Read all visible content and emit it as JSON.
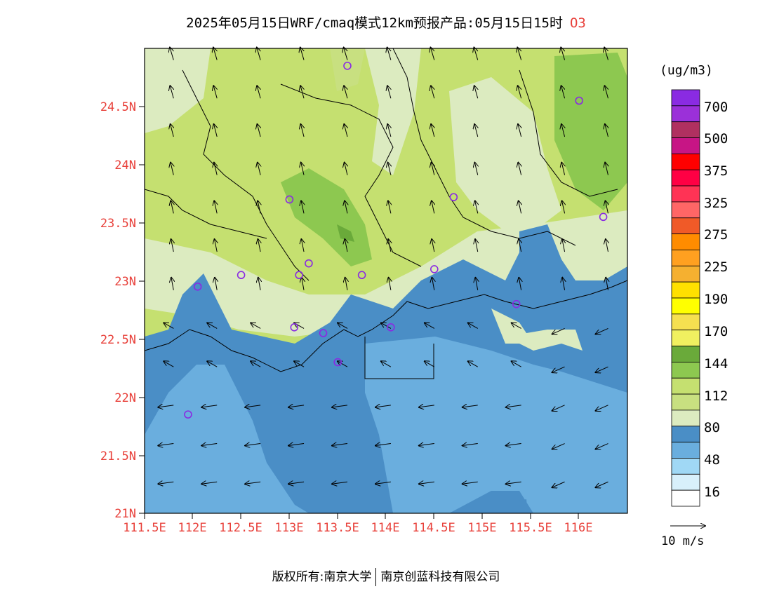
{
  "title": {
    "main": "2025年05月15日WRF/cmaq模式12km预报产品:05月15日15时",
    "pollutant": "O3"
  },
  "axes": {
    "x_ticks": [
      "111.5E",
      "112E",
      "112.5E",
      "113E",
      "113.5E",
      "114E",
      "114.5E",
      "115E",
      "115.5E",
      "116E"
    ],
    "y_ticks": [
      "21N",
      "21.5N",
      "22N",
      "22.5N",
      "23N",
      "23.5N",
      "24N",
      "24.5N"
    ]
  },
  "legend": {
    "unit": "(ug/m3)",
    "labels": [
      "700",
      "500",
      "375",
      "325",
      "275",
      "225",
      "190",
      "170",
      "144",
      "112",
      "80",
      "48",
      "16"
    ],
    "colors": [
      "#8a2be2",
      "#9b30d9",
      "#b03060",
      "#c71585",
      "#ff0000",
      "#ff0044",
      "#ff3355",
      "#ff6666",
      "#f05a28",
      "#ff8c00",
      "#ffa020",
      "#f5b030",
      "#ffe000",
      "#ffff00",
      "#f5e050",
      "#f0f060",
      "#6aaa3a",
      "#8dc850",
      "#c5e070",
      "#c8e080",
      "#dcebc0",
      "#4a8ec6",
      "#6aaede",
      "#a0d8f5",
      "#d8f0fb",
      "#ffffff"
    ]
  },
  "wind_reference": {
    "label": "10 m/s"
  },
  "footer": {
    "left": "版权所有:南京大学",
    "right": "南京创蓝科技有限公司"
  },
  "stations": [
    {
      "lon": 113.6,
      "lat": 24.85
    },
    {
      "lon": 116.0,
      "lat": 24.55
    },
    {
      "lon": 113.0,
      "lat": 23.7
    },
    {
      "lon": 114.7,
      "lat": 23.72
    },
    {
      "lon": 116.25,
      "lat": 23.55
    },
    {
      "lon": 112.5,
      "lat": 23.05
    },
    {
      "lon": 113.1,
      "lat": 23.05
    },
    {
      "lon": 113.2,
      "lat": 23.15
    },
    {
      "lon": 113.75,
      "lat": 23.05
    },
    {
      "lon": 114.5,
      "lat": 23.1
    },
    {
      "lon": 112.05,
      "lat": 22.95
    },
    {
      "lon": 115.35,
      "lat": 22.8
    },
    {
      "lon": 113.05,
      "lat": 22.6
    },
    {
      "lon": 113.35,
      "lat": 22.55
    },
    {
      "lon": 114.05,
      "lat": 22.6
    },
    {
      "lon": 113.5,
      "lat": 22.3
    },
    {
      "lon": 111.95,
      "lat": 21.85
    }
  ]
}
